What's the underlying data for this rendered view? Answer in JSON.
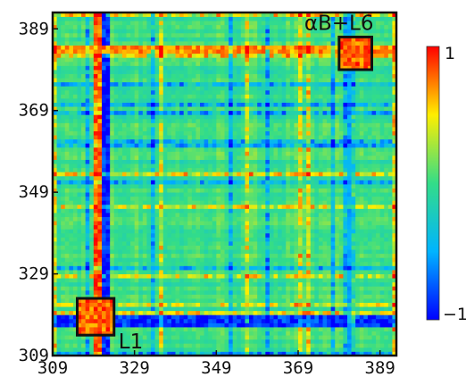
{
  "chart_data": {
    "type": "heatmap",
    "title": "",
    "xlabel": "",
    "ylabel": "",
    "x_range": [
      309,
      393
    ],
    "y_range": [
      309,
      393
    ],
    "x_ticks": [
      "309",
      "329",
      "349",
      "369",
      "389"
    ],
    "y_ticks": [
      "309",
      "329",
      "349",
      "369",
      "389"
    ],
    "colorbar": {
      "min": -1,
      "max": 1,
      "min_label": "−1",
      "max_label": "1",
      "colors": [
        "#0000ff",
        "#00b4ff",
        "#33dd88",
        "#ffee00",
        "#ff0000"
      ]
    },
    "background_value": 0,
    "features": [
      {
        "name": "band-col-hi",
        "axis": "x",
        "from": 319,
        "to": 321,
        "value": 0.8
      },
      {
        "name": "band-col-lo",
        "axis": "x",
        "from": 321,
        "to": 323,
        "value": -0.9
      },
      {
        "name": "band-row-mix",
        "axis": "y",
        "from": 316,
        "to": 319,
        "value": -0.85
      },
      {
        "name": "band-row-hi",
        "axis": "y",
        "from": 383,
        "to": 385,
        "value": 0.7
      },
      {
        "name": "band-col-right",
        "axis": "x",
        "from": 381,
        "to": 383,
        "value": -0.5
      }
    ],
    "annotations": [
      {
        "label": "αB+L6",
        "x_from": 379,
        "x_to": 387,
        "y_from": 379,
        "y_to": 387
      },
      {
        "label": "L1",
        "x_from": 315,
        "x_to": 324,
        "y_from": 314,
        "y_to": 323
      }
    ]
  }
}
